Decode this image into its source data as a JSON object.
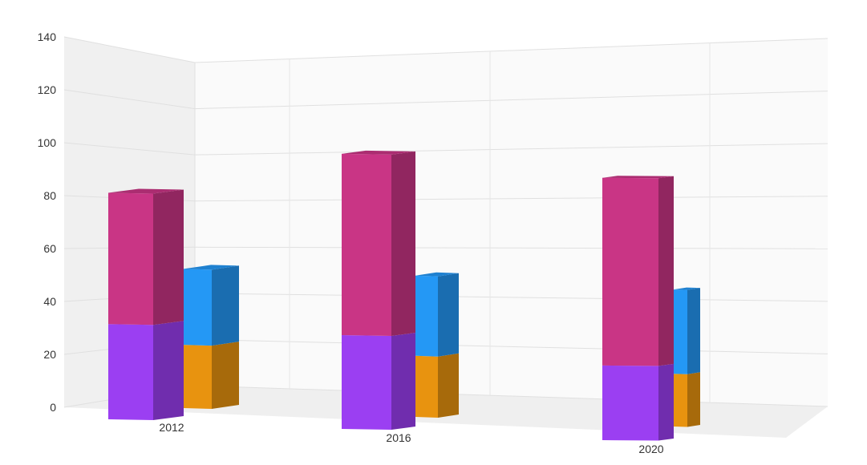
{
  "chart_data": {
    "type": "bar",
    "stacked": true,
    "three_d": true,
    "categories": [
      "2012",
      "2016",
      "2020"
    ],
    "stacks": [
      {
        "series": [
          {
            "name": "",
            "color": "#9b3ff2",
            "values": [
              45,
              44,
              35
            ]
          },
          {
            "name": "",
            "color": "#c93585",
            "values": [
              62,
              85,
              88
            ]
          }
        ]
      },
      {
        "series": [
          {
            "name": "",
            "color": "#e8930f",
            "values": [
              30,
              29,
              25
            ]
          },
          {
            "name": "",
            "color": "#2498f5",
            "values": [
              36,
              38,
              40
            ]
          }
        ]
      }
    ],
    "ylim": [
      0,
      140
    ],
    "yticks": [
      "0",
      "20",
      "40",
      "60",
      "80",
      "100",
      "120",
      "140"
    ],
    "title": "",
    "xlabel": "",
    "ylabel": "",
    "grid": true,
    "legend": "none"
  }
}
